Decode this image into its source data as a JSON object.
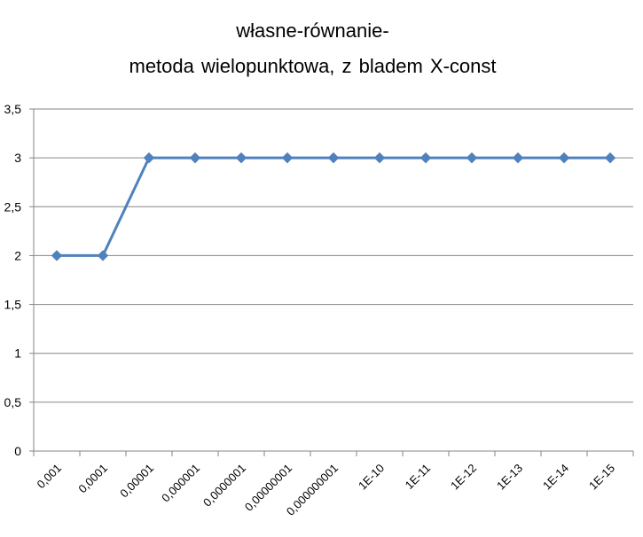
{
  "chart_data": {
    "type": "line",
    "title_line1": "własne-równanie-",
    "title_line2": "metoda wielopunktowa,  z bladem   X-const",
    "xlabel": "",
    "ylabel": "",
    "categories": [
      "0,001",
      "0,0001",
      "0,00001",
      "0,000001",
      "0,0000001",
      "0,00000001",
      "0,000000001",
      "1E-10",
      "1E-11",
      "1E-12",
      "1E-13",
      "1E-14",
      "1E-15"
    ],
    "series": [
      {
        "values": [
          2,
          2,
          3,
          3,
          3,
          3,
          3,
          3,
          3,
          3,
          3,
          3,
          3
        ],
        "color": "#4F81BD"
      }
    ],
    "ylim": [
      0,
      3.5
    ],
    "yticks": [
      0,
      0.5,
      1,
      1.5,
      2,
      2.5,
      3,
      3.5
    ],
    "ytick_labels": [
      "0",
      "0,5",
      "1",
      "1,5",
      "2",
      "2,5",
      "3",
      "3,5"
    ],
    "grid": true,
    "legend": "none",
    "marker": "diamond"
  }
}
